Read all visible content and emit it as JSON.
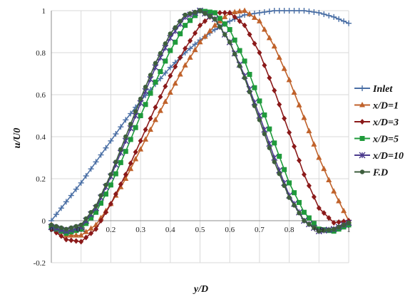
{
  "chart_data": {
    "type": "line",
    "title": "",
    "xlabel": "y/D",
    "ylabel": "u/U0",
    "xlim": [
      0,
      1
    ],
    "ylim": [
      -0.2,
      1
    ],
    "grid": true,
    "legend_position": "right",
    "x_ticks": [
      "0",
      "0.1",
      "0.2",
      "0.3",
      "0.4",
      "0.5",
      "0.6",
      "0.7",
      "0.8",
      "0.9",
      "1"
    ],
    "y_ticks": [
      "-0.2",
      "0",
      "0.2",
      "0.4",
      "0.6",
      "0.8",
      "1"
    ],
    "series": [
      {
        "name": "Inlet",
        "color": "#4a6fa5",
        "marker": "plus",
        "x": [
          0.0,
          0.05,
          0.1,
          0.15,
          0.2,
          0.25,
          0.3,
          0.35,
          0.4,
          0.45,
          0.5,
          0.55,
          0.6,
          0.65,
          0.7,
          0.75,
          0.8,
          0.85,
          0.9,
          0.95,
          1.0
        ],
        "y": [
          0.0,
          0.09,
          0.18,
          0.28,
          0.38,
          0.48,
          0.57,
          0.65,
          0.73,
          0.8,
          0.86,
          0.91,
          0.95,
          0.98,
          0.99,
          1.0,
          1.0,
          1.0,
          0.99,
          0.97,
          0.94
        ]
      },
      {
        "name": "x/D=1",
        "color": "#c0622b",
        "marker": "triangle",
        "x": [
          0.0,
          0.05,
          0.1,
          0.15,
          0.2,
          0.25,
          0.3,
          0.35,
          0.4,
          0.45,
          0.5,
          0.55,
          0.6,
          0.65,
          0.7,
          0.75,
          0.8,
          0.85,
          0.9,
          0.95,
          1.0
        ],
        "y": [
          -0.02,
          -0.07,
          -0.07,
          -0.02,
          0.08,
          0.2,
          0.34,
          0.48,
          0.61,
          0.74,
          0.85,
          0.93,
          0.99,
          1.0,
          0.95,
          0.83,
          0.67,
          0.49,
          0.3,
          0.14,
          0.0
        ]
      },
      {
        "name": "x/D=3",
        "color": "#8b1a1a",
        "marker": "diamond",
        "x": [
          0.0,
          0.05,
          0.1,
          0.15,
          0.2,
          0.25,
          0.3,
          0.35,
          0.4,
          0.45,
          0.5,
          0.55,
          0.6,
          0.65,
          0.7,
          0.75,
          0.8,
          0.85,
          0.9,
          0.95,
          1.0
        ],
        "y": [
          -0.04,
          -0.09,
          -0.1,
          -0.04,
          0.08,
          0.22,
          0.38,
          0.54,
          0.69,
          0.82,
          0.93,
          0.99,
          0.99,
          0.93,
          0.8,
          0.62,
          0.42,
          0.22,
          0.06,
          -0.01,
          0.0
        ]
      },
      {
        "name": "x/D=5",
        "color": "#1f9a3b",
        "marker": "square",
        "x": [
          0.0,
          0.05,
          0.1,
          0.15,
          0.2,
          0.25,
          0.3,
          0.35,
          0.4,
          0.45,
          0.5,
          0.55,
          0.6,
          0.65,
          0.7,
          0.75,
          0.8,
          0.85,
          0.9,
          0.95,
          1.0
        ],
        "y": [
          -0.03,
          -0.06,
          -0.04,
          0.04,
          0.17,
          0.33,
          0.5,
          0.66,
          0.81,
          0.93,
          1.0,
          0.99,
          0.91,
          0.76,
          0.57,
          0.37,
          0.18,
          0.04,
          -0.04,
          -0.05,
          -0.02
        ]
      },
      {
        "name": "x/D=10",
        "color": "#4b3a8c",
        "marker": "star",
        "x": [
          0.0,
          0.05,
          0.1,
          0.15,
          0.2,
          0.25,
          0.3,
          0.35,
          0.4,
          0.45,
          0.5,
          0.55,
          0.6,
          0.65,
          0.7,
          0.75,
          0.8,
          0.85,
          0.9,
          0.95,
          1.0
        ],
        "y": [
          -0.03,
          -0.05,
          -0.03,
          0.06,
          0.21,
          0.38,
          0.56,
          0.73,
          0.87,
          0.97,
          1.0,
          0.96,
          0.85,
          0.69,
          0.5,
          0.3,
          0.12,
          0.0,
          -0.05,
          -0.04,
          -0.01
        ]
      },
      {
        "name": "F.D",
        "color": "#3d5e3d",
        "marker": "circle",
        "x": [
          0.0,
          0.05,
          0.1,
          0.15,
          0.2,
          0.25,
          0.3,
          0.35,
          0.4,
          0.45,
          0.5,
          0.55,
          0.6,
          0.65,
          0.7,
          0.75,
          0.8,
          0.85,
          0.9,
          0.95,
          1.0
        ],
        "y": [
          -0.02,
          -0.04,
          -0.02,
          0.07,
          0.22,
          0.4,
          0.58,
          0.75,
          0.89,
          0.98,
          1.0,
          0.96,
          0.85,
          0.68,
          0.48,
          0.28,
          0.11,
          0.0,
          -0.05,
          -0.04,
          -0.01
        ]
      }
    ]
  }
}
